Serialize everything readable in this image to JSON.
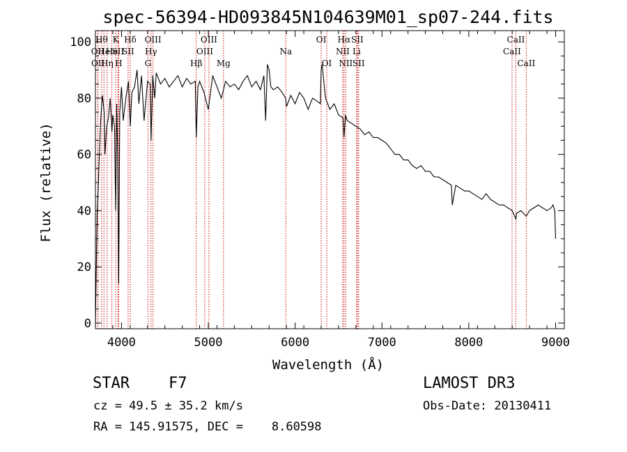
{
  "chart_data": {
    "type": "line",
    "title": "spec-56394-HD093845N104639M01_sp07-244.fits",
    "xlabel": "Wavelength (Å)",
    "ylabel": "Flux (relative)",
    "xlim": [
      3700,
      9100
    ],
    "ylim": [
      -2,
      104
    ],
    "xticks": [
      4000,
      5000,
      6000,
      7000,
      8000,
      9000
    ],
    "yticks": [
      0,
      20,
      40,
      60,
      80,
      100
    ],
    "grid": false,
    "series": [
      {
        "name": "Flux",
        "color": "#000000",
        "x": [
          3700,
          3720,
          3730,
          3745,
          3760,
          3780,
          3800,
          3810,
          3830,
          3850,
          3870,
          3890,
          3900,
          3920,
          3933,
          3945,
          3955,
          3968,
          3980,
          4000,
          4020,
          4050,
          4080,
          4101,
          4120,
          4150,
          4180,
          4200,
          4230,
          4260,
          4300,
          4330,
          4340,
          4360,
          4383,
          4400,
          4450,
          4500,
          4550,
          4600,
          4650,
          4700,
          4750,
          4800,
          4850,
          4861,
          4880,
          4900,
          4950,
          5000,
          5050,
          5100,
          5150,
          5200,
          5250,
          5300,
          5350,
          5400,
          5450,
          5500,
          5550,
          5600,
          5640,
          5660,
          5680,
          5700,
          5720,
          5750,
          5800,
          5850,
          5890,
          5900,
          5950,
          6000,
          6050,
          6100,
          6150,
          6200,
          6250,
          6290,
          6300,
          6310,
          6350,
          6400,
          6450,
          6500,
          6550,
          6563,
          6580,
          6600,
          6650,
          6700,
          6750,
          6800,
          6850,
          6900,
          6950,
          7000,
          7050,
          7100,
          7150,
          7200,
          7250,
          7300,
          7350,
          7400,
          7450,
          7500,
          7550,
          7600,
          7650,
          7700,
          7750,
          7800,
          7810,
          7850,
          7900,
          7950,
          8000,
          8050,
          8100,
          8150,
          8200,
          8250,
          8300,
          8350,
          8400,
          8450,
          8500,
          8542,
          8550,
          8600,
          8662,
          8700,
          8750,
          8800,
          8850,
          8900,
          8950,
          8970,
          8990,
          9000
        ],
        "values": [
          0,
          40,
          46,
          60,
          72,
          81,
          75,
          60,
          70,
          73,
          80,
          68,
          74,
          70,
          40,
          78,
          62,
          14,
          75,
          84,
          72,
          80,
          86,
          70,
          82,
          84,
          90,
          78,
          88,
          72,
          86,
          85,
          65,
          88,
          80,
          89,
          85,
          87,
          84,
          86,
          88,
          84,
          87,
          85,
          86,
          66,
          84,
          86,
          82,
          76,
          88,
          84,
          80,
          86,
          84,
          85,
          83,
          86,
          88,
          84,
          86,
          83,
          88,
          72,
          92,
          90,
          84,
          83,
          84,
          82,
          80,
          77,
          81,
          78,
          82,
          80,
          76,
          80,
          79,
          78,
          90,
          92,
          80,
          76,
          78,
          74,
          73,
          66,
          74,
          72,
          71,
          70,
          69,
          67,
          68,
          66,
          66,
          65,
          64,
          62,
          60,
          60,
          58,
          58,
          56,
          55,
          56,
          54,
          54,
          52,
          52,
          51,
          50,
          49,
          42,
          49,
          48,
          47,
          47,
          46,
          45,
          44,
          46,
          44,
          43,
          42,
          42,
          41,
          40,
          37,
          39,
          40,
          38,
          40,
          41,
          42,
          41,
          40,
          41,
          42,
          40,
          30
        ]
      }
    ],
    "lines": [
      {
        "name": "OII",
        "x": 3727,
        "row": 1
      },
      {
        "name": "OII",
        "x": 3729,
        "row": 2
      },
      {
        "name": "Hθ",
        "x": 3771,
        "row": 0
      },
      {
        "name": "He",
        "x": 3798,
        "row": 1
      },
      {
        "name": "Hη",
        "x": 3835,
        "row": 2
      },
      {
        "name": "He",
        "x": 3889,
        "row": 1
      },
      {
        "name": "K",
        "x": 3934,
        "row": 0
      },
      {
        "name": "SII",
        "x": 3960,
        "row": 1
      },
      {
        "name": "H",
        "x": 3968,
        "row": 2
      },
      {
        "name": "Hδ",
        "x": 4101,
        "row": 0
      },
      {
        "name": "SII",
        "x": 4076,
        "row": 1
      },
      {
        "name": "OIII",
        "x": 4363,
        "row": 0
      },
      {
        "name": "Hγ",
        "x": 4340,
        "row": 1
      },
      {
        "name": "G",
        "x": 4305,
        "row": 2
      },
      {
        "name": "Hβ",
        "x": 4861,
        "row": 2
      },
      {
        "name": "OIII",
        "x": 5007,
        "row": 0
      },
      {
        "name": "OIII",
        "x": 4959,
        "row": 1
      },
      {
        "name": "Mg",
        "x": 5175,
        "row": 2
      },
      {
        "name": "Na",
        "x": 5893,
        "row": 1
      },
      {
        "name": "OI",
        "x": 6300,
        "row": 0
      },
      {
        "name": "OI",
        "x": 6364,
        "row": 2
      },
      {
        "name": "Hα",
        "x": 6563,
        "row": 0
      },
      {
        "name": "NII",
        "x": 6548,
        "row": 1
      },
      {
        "name": "NII",
        "x": 6583,
        "row": 2
      },
      {
        "name": "SII",
        "x": 6716,
        "row": 0
      },
      {
        "name": "Li",
        "x": 6708,
        "row": 1
      },
      {
        "name": "SII",
        "x": 6731,
        "row": 2
      },
      {
        "name": "CaII",
        "x": 8542,
        "row": 0
      },
      {
        "name": "CaII",
        "x": 8498,
        "row": 1
      },
      {
        "name": "CaII",
        "x": 8662,
        "row": 2
      }
    ]
  },
  "info": {
    "object_class": "STAR",
    "subclass": "F7",
    "survey": "LAMOST DR3",
    "cz": "cz = 49.5 ± 35.2 km/s",
    "obs_date": "Obs-Date: 20130411",
    "coords": "RA = 145.91575, DEC =    8.60598"
  },
  "colors": {
    "axis": "#000000",
    "spectrum": "#000000",
    "line_marker": "#cc0000",
    "background": "#ffffff"
  }
}
